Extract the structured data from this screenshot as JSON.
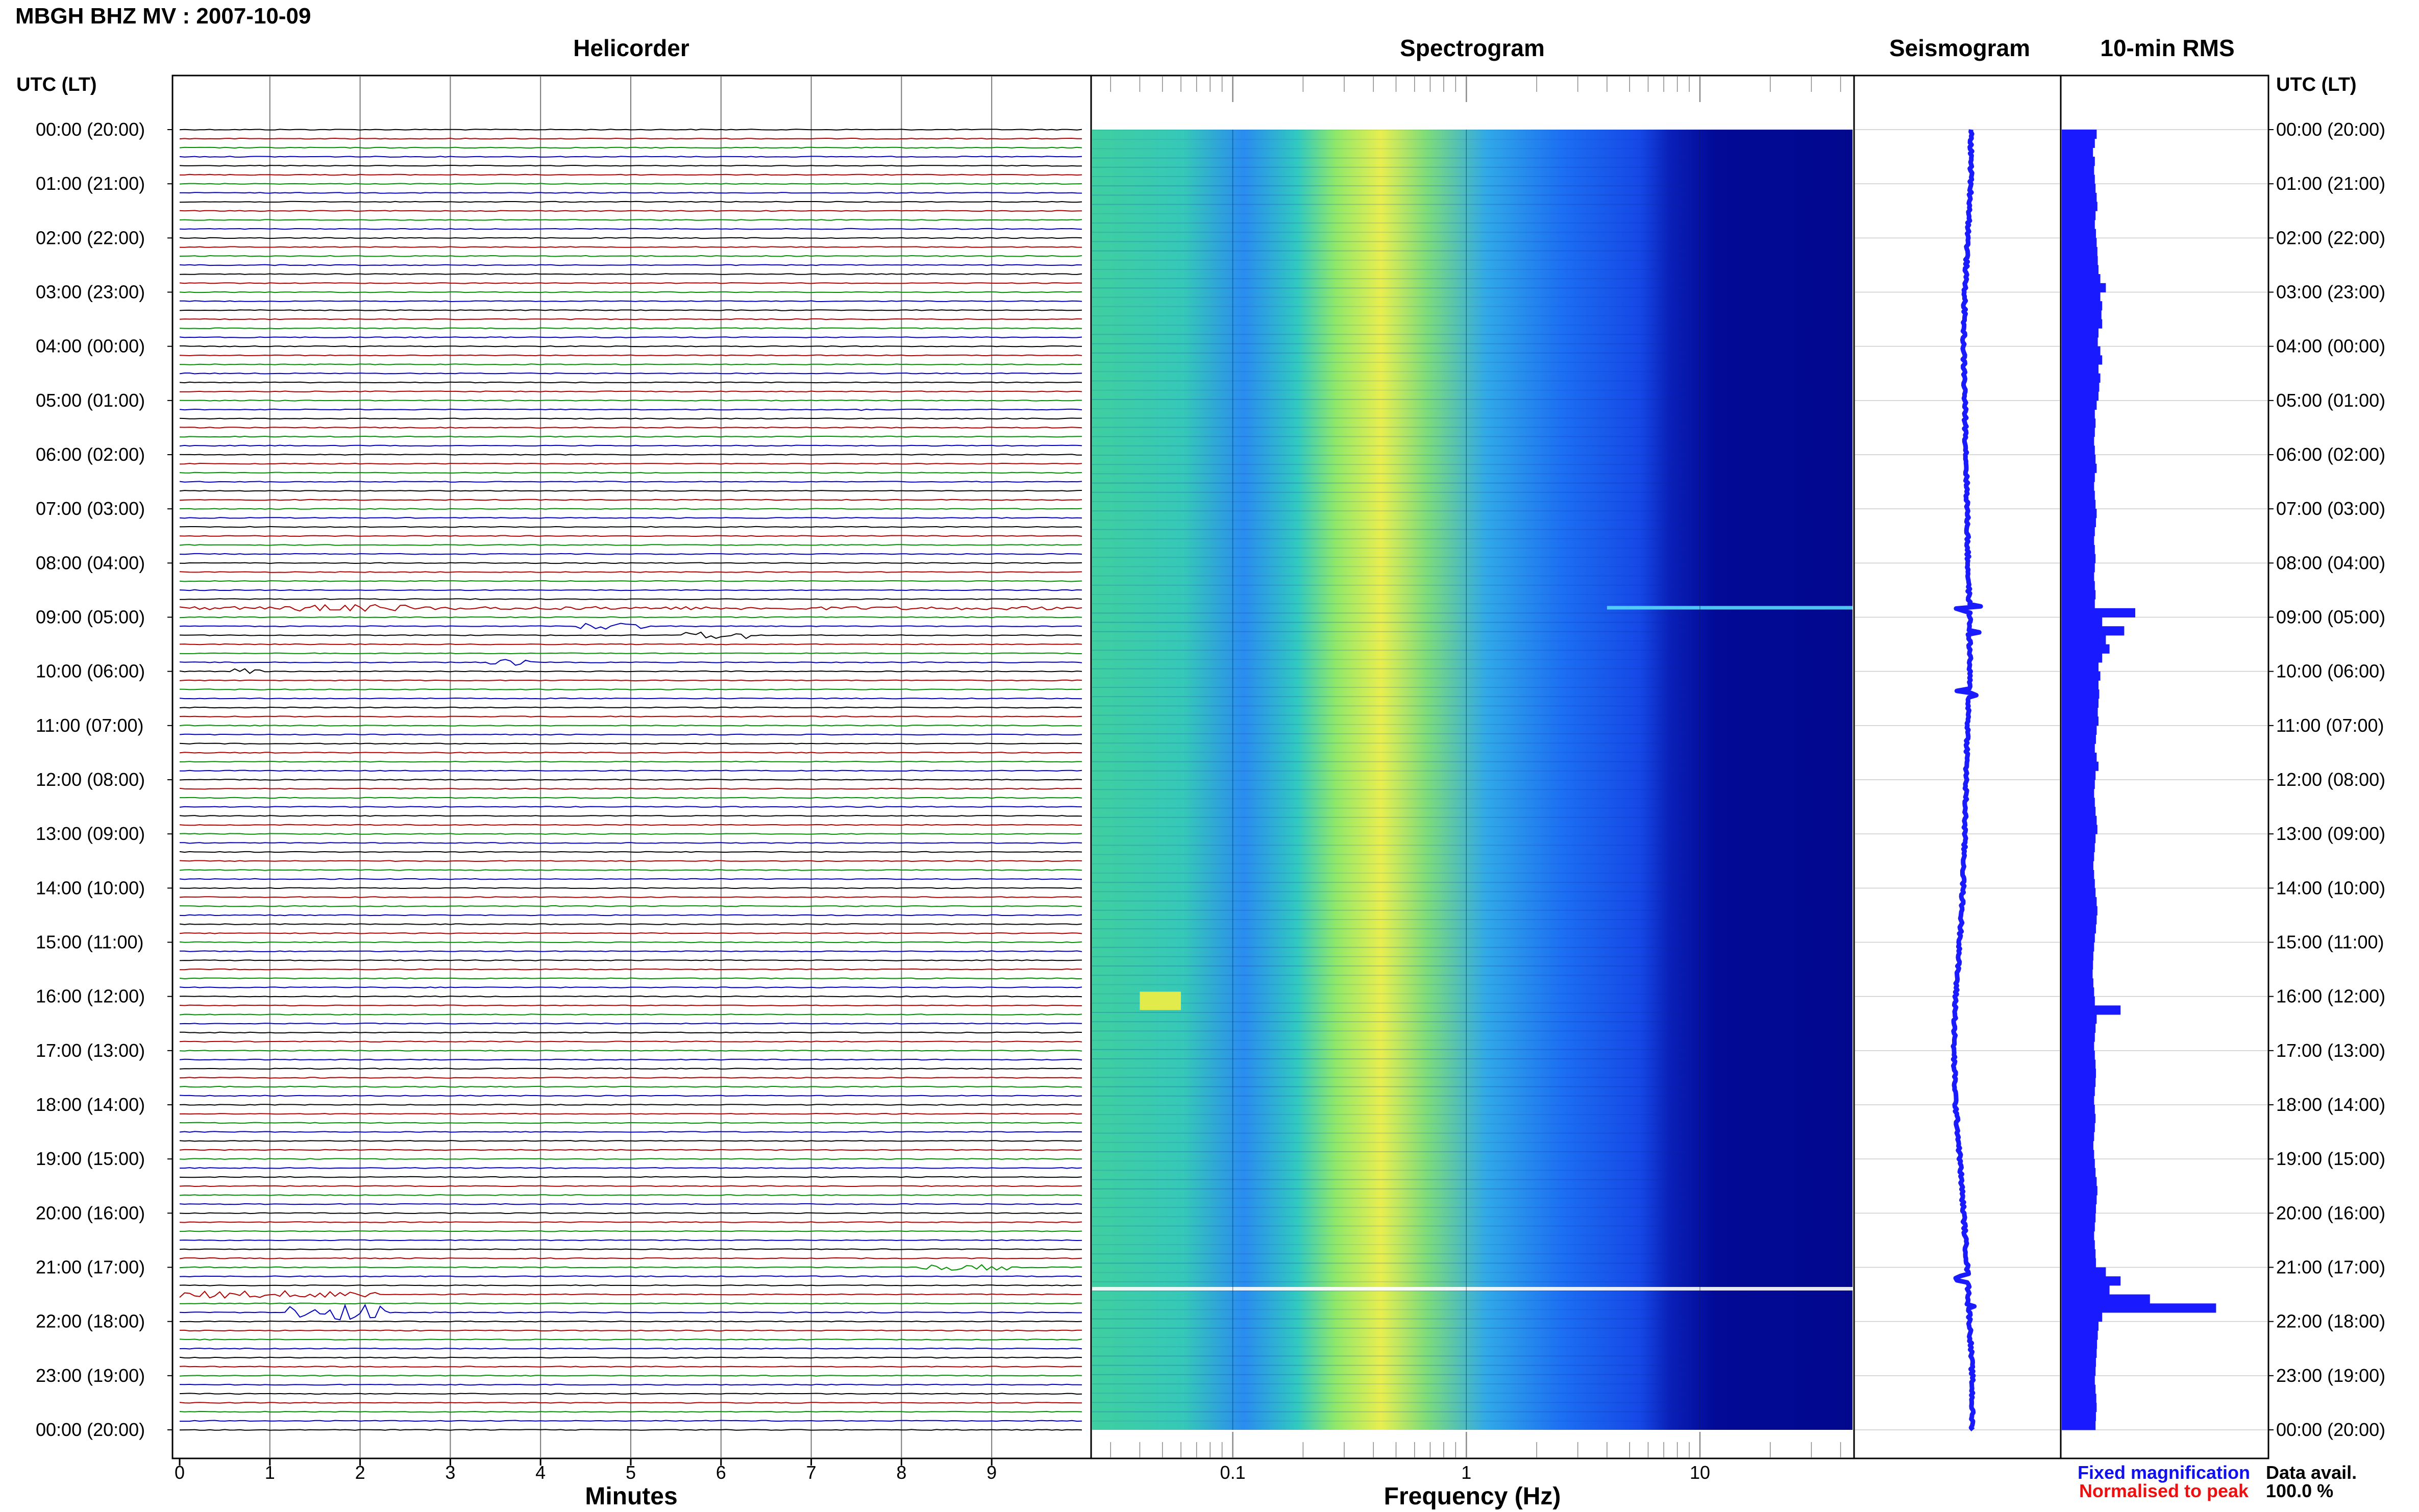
{
  "page": {
    "title": "MBGH BHZ MV : 2007-10-09",
    "utc_header_left": "UTC (LT)",
    "utc_header_right": "UTC (LT)"
  },
  "panels": {
    "helicorder": {
      "title": "Helicorder",
      "xlabel": "Minutes"
    },
    "spectrogram": {
      "title": "Spectrogram",
      "xlabel": "Frequency (Hz)"
    },
    "seismogram": {
      "title": "Seismogram"
    },
    "rms": {
      "title": "10-min RMS"
    }
  },
  "legend": {
    "fixed": "Fixed magnification",
    "normalised": "Normalised to peak",
    "fixed_color": "#1010ee",
    "normalised_color": "#ee1010"
  },
  "data_availability": {
    "label": "Data avail.",
    "value": "100.0 %"
  },
  "colors": {
    "trace_cycle": [
      "#000000",
      "#b00000",
      "#009000",
      "#0000c0"
    ],
    "spectrogram_low": "#00008e",
    "spectrogram_mid": "#1e90ff",
    "spectrogram_high": "#ffff40",
    "rms_bar": "#1a1aff"
  },
  "chart_data": [
    {
      "type": "line",
      "title": "Helicorder",
      "xlabel": "Minutes",
      "xticks": [
        0,
        1,
        2,
        3,
        4,
        5,
        6,
        7,
        8,
        9
      ],
      "xlim": [
        0,
        10
      ],
      "time_labels": [
        "00:00 (20:00)",
        "01:00 (21:00)",
        "02:00 (22:00)",
        "03:00 (23:00)",
        "04:00 (00:00)",
        "05:00 (01:00)",
        "06:00 (02:00)",
        "07:00 (03:00)",
        "08:00 (04:00)",
        "09:00 (05:00)",
        "10:00 (06:00)",
        "11:00 (07:00)",
        "12:00 (08:00)",
        "13:00 (09:00)",
        "14:00 (10:00)",
        "15:00 (11:00)",
        "16:00 (12:00)",
        "17:00 (13:00)",
        "18:00 (14:00)",
        "19:00 (15:00)",
        "20:00 (16:00)",
        "21:00 (17:00)",
        "22:00 (18:00)",
        "23:00 (19:00)",
        "00:00 (20:00)"
      ],
      "lines_per_hour": 6,
      "events": [
        {
          "hour": 8.83,
          "minute_start": 0.0,
          "minute_end": 10.0,
          "amplitude": 0.45
        },
        {
          "hour": 8.83,
          "minute_start": 1.3,
          "minute_end": 2.6,
          "amplitude": 1.0
        },
        {
          "hour": 9.17,
          "minute_start": 4.4,
          "minute_end": 5.2,
          "amplitude": 1.0
        },
        {
          "hour": 9.33,
          "minute_start": 5.6,
          "minute_end": 6.3,
          "amplitude": 1.1
        },
        {
          "hour": 9.83,
          "minute_start": 3.4,
          "minute_end": 3.9,
          "amplitude": 1.0
        },
        {
          "hour": 10.0,
          "minute_start": 0.6,
          "minute_end": 0.9,
          "amplitude": 0.8
        },
        {
          "hour": 5.17,
          "minute_start": 7.4,
          "minute_end": 7.6,
          "amplitude": 0.6
        },
        {
          "hour": 21.0,
          "minute_start": 8.2,
          "minute_end": 9.2,
          "amplitude": 0.8
        },
        {
          "hour": 21.5,
          "minute_start": 0.0,
          "minute_end": 2.2,
          "amplitude": 1.0
        },
        {
          "hour": 21.83,
          "minute_start": 1.2,
          "minute_end": 2.3,
          "amplitude": 2.2
        }
      ]
    },
    {
      "type": "heatmap",
      "title": "Spectrogram",
      "xlabel": "Frequency (Hz)",
      "xscale": "log",
      "xlim": [
        0.025,
        45
      ],
      "xticks": [
        0.1,
        1,
        10
      ],
      "xticklabels": [
        "0.1",
        "1",
        "10"
      ],
      "peak_frequency_hz": 0.25,
      "bright_patches": [
        {
          "hour": 8.83,
          "freq_start": 4,
          "freq_end": 45
        },
        {
          "hour": 15.95,
          "freq_start": 0.04,
          "freq_end": 0.06
        },
        {
          "hour": 21.4,
          "freq_start": 0.025,
          "freq_end": 45
        }
      ]
    },
    {
      "type": "line",
      "title": "Seismogram",
      "orientation": "vertical",
      "description_values": [
        0.0,
        0.0,
        -0.05,
        -0.1,
        -0.12,
        -0.1,
        -0.08,
        -0.06,
        -0.05,
        -0.02,
        -0.02,
        -0.05,
        -0.08,
        -0.1,
        -0.13,
        -0.18,
        -0.25,
        -0.28,
        -0.25,
        -0.18,
        -0.12,
        -0.06,
        -0.02,
        0.02,
        0.02
      ],
      "spikes_at_hours": [
        8.83,
        9.3,
        10.4,
        21.2,
        21.7
      ]
    },
    {
      "type": "bar",
      "title": "10-min RMS",
      "orientation": "horizontal",
      "values": [
        0.95,
        0.9,
        0.85,
        0.9,
        0.88,
        0.9,
        0.92,
        0.95,
        0.97,
        0.92,
        0.9,
        0.93,
        0.95,
        0.97,
        0.98,
        1.0,
        1.05,
        1.2,
        1.05,
        1.1,
        1.08,
        1.1,
        1.0,
        0.98,
        1.05,
        1.1,
        1.0,
        1.05,
        1.02,
        1.0,
        0.95,
        0.9,
        0.92,
        0.9,
        0.88,
        0.9,
        0.92,
        0.95,
        0.9,
        0.88,
        0.9,
        0.92,
        0.95,
        0.93,
        0.9,
        0.88,
        0.9,
        0.92,
        0.9,
        0.88,
        0.9,
        0.92,
        0.9,
        2.0,
        1.1,
        1.7,
        1.2,
        1.3,
        1.1,
        1.0,
        1.05,
        1.0,
        1.02,
        1.0,
        0.98,
        1.0,
        0.95,
        0.93,
        0.9,
        0.95,
        1.0,
        0.92,
        0.9,
        0.88,
        0.9,
        0.92,
        0.95,
        0.97,
        0.92,
        0.9,
        0.88,
        0.86,
        0.88,
        0.9,
        0.92,
        0.95,
        0.97,
        0.95,
        0.93,
        0.9,
        0.88,
        0.86,
        0.85,
        0.84,
        0.86,
        0.88,
        0.9,
        1.6,
        0.95,
        0.92,
        0.9,
        0.88,
        0.9,
        0.92,
        0.93,
        0.92,
        0.9,
        0.88,
        0.9,
        0.92,
        0.9,
        0.88,
        0.86,
        0.88,
        0.9,
        0.92,
        0.95,
        0.97,
        0.95,
        0.93,
        0.92,
        0.9,
        0.88,
        0.9,
        0.92,
        0.93,
        1.2,
        1.6,
        1.3,
        2.4,
        4.2,
        1.1,
        1.0,
        0.98,
        0.96,
        0.95,
        0.93,
        0.92,
        0.9,
        0.92,
        0.94,
        0.95,
        0.93,
        0.92
      ]
    }
  ]
}
